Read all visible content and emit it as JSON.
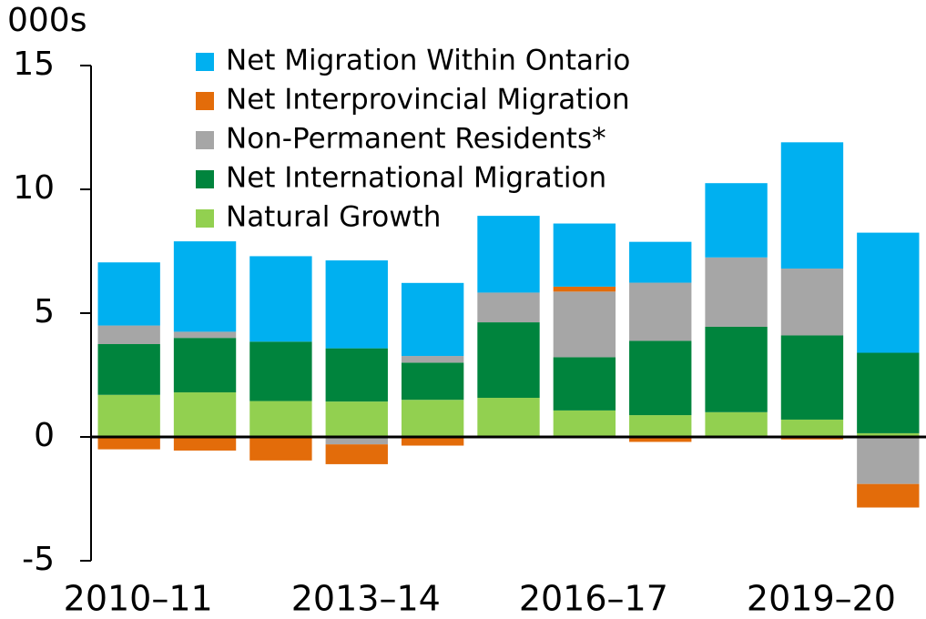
{
  "chart_data": {
    "type": "stacked_bar",
    "unit_label": "000s",
    "categories": [
      "2010–11",
      null,
      null,
      "2013–14",
      null,
      null,
      "2016–17",
      null,
      null,
      "2019–20",
      null
    ],
    "series": [
      {
        "name": "Net Migration Within Ontario",
        "color": "#00b0f0",
        "values": [
          2.55,
          3.65,
          3.45,
          3.55,
          2.95,
          3.1,
          2.55,
          1.65,
          3.0,
          5.1,
          4.85
        ]
      },
      {
        "name": "Net Interprovincial Migration",
        "color": "#e36c0a",
        "values": [
          -0.5,
          -0.55,
          -0.95,
          -0.8,
          -0.35,
          0,
          0.2,
          -0.2,
          0,
          -0.1,
          -0.95
        ]
      },
      {
        "name": "Non-Permanent Residents*",
        "color": "#a6a6a6",
        "values": [
          0.75,
          0.25,
          0,
          -0.3,
          0.27,
          1.2,
          2.65,
          2.35,
          2.8,
          2.7,
          -1.9
        ]
      },
      {
        "name": "Net International Migration",
        "color": "#00843d",
        "values": [
          2.05,
          2.2,
          2.4,
          2.15,
          1.5,
          3.05,
          2.15,
          3.0,
          3.45,
          3.4,
          3.25
        ]
      },
      {
        "name": "Natural Growth",
        "color": "#92d050",
        "values": [
          1.7,
          1.8,
          1.45,
          1.43,
          1.5,
          1.58,
          1.07,
          0.88,
          1.0,
          0.7,
          0.15
        ]
      }
    ],
    "ylim": [
      -5,
      15
    ],
    "yticks": [
      15,
      10,
      5,
      0,
      -5
    ]
  }
}
